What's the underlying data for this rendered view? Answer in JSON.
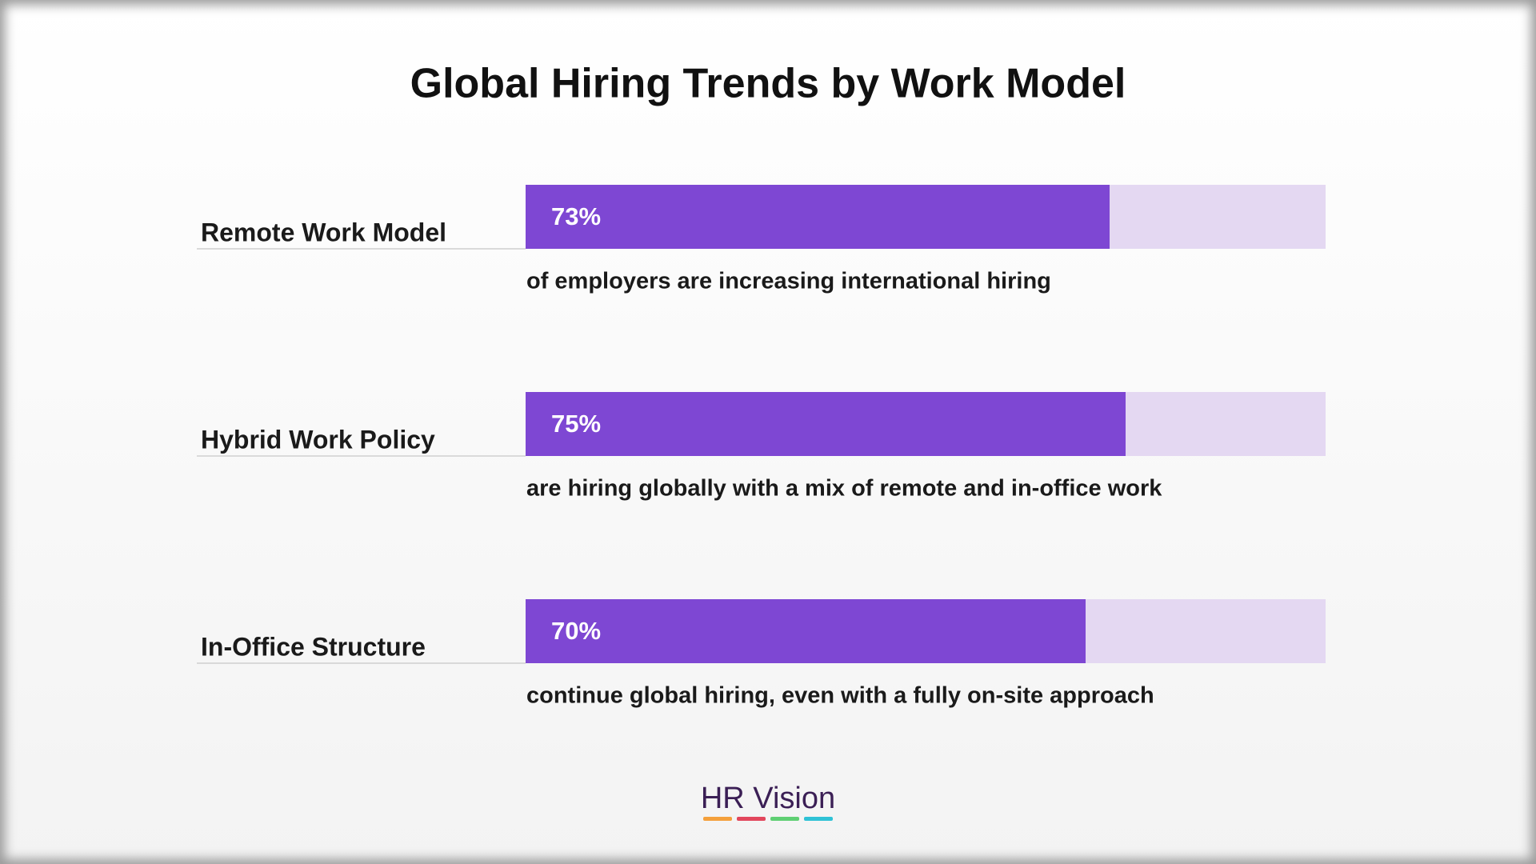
{
  "chart_data": {
    "type": "bar",
    "orientation": "horizontal",
    "title": "Global Hiring Trends by Work Model",
    "categories": [
      "Remote Work Model",
      "Hybrid Work Policy",
      "In-Office Structure"
    ],
    "values": [
      73,
      75,
      70
    ],
    "value_labels": [
      "73%",
      "75%",
      "70%"
    ],
    "descriptions": [
      "of employers are increasing international hiring",
      "are hiring globally with a mix of remote and in-office work",
      "continue global hiring, even with a fully on-site approach"
    ],
    "color": "#7e47d3",
    "track_color": "#e4d8f2",
    "xlim": [
      0,
      100
    ]
  },
  "footer": {
    "brand": "HR Vision"
  }
}
